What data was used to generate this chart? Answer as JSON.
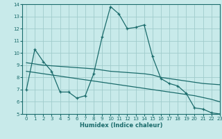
{
  "xlabel": "Humidex (Indice chaleur)",
  "bg_color": "#c8eaea",
  "line_color": "#1a6b6b",
  "grid_color": "#a0cccc",
  "xlim": [
    -0.5,
    23
  ],
  "ylim": [
    5,
    14
  ],
  "yticks": [
    5,
    6,
    7,
    8,
    9,
    10,
    11,
    12,
    13,
    14
  ],
  "xticks": [
    0,
    1,
    2,
    3,
    4,
    5,
    6,
    7,
    8,
    9,
    10,
    11,
    12,
    13,
    14,
    15,
    16,
    17,
    18,
    19,
    20,
    21,
    22,
    23
  ],
  "line1_x": [
    0,
    1,
    2,
    3,
    4,
    5,
    6,
    7,
    8,
    9,
    10,
    11,
    12,
    13,
    14,
    15,
    16,
    17,
    18,
    19,
    20,
    21,
    22,
    23
  ],
  "line1_y": [
    7.0,
    10.3,
    9.3,
    8.5,
    6.8,
    6.8,
    6.3,
    6.5,
    8.3,
    11.3,
    13.8,
    13.2,
    12.0,
    12.1,
    12.3,
    9.7,
    7.9,
    7.5,
    7.3,
    6.7,
    5.5,
    5.4,
    5.1,
    5.0
  ],
  "line2_x": [
    0,
    1,
    2,
    3,
    4,
    5,
    6,
    7,
    8,
    9,
    10,
    11,
    12,
    13,
    14,
    15,
    16,
    17,
    18,
    19,
    20,
    21,
    22,
    23
  ],
  "line2_y": [
    9.2,
    9.1,
    9.0,
    8.95,
    8.9,
    8.85,
    8.8,
    8.75,
    8.7,
    8.6,
    8.5,
    8.45,
    8.4,
    8.35,
    8.3,
    8.2,
    8.0,
    7.9,
    7.8,
    7.7,
    7.6,
    7.5,
    7.45,
    7.4
  ],
  "line3_x": [
    0,
    1,
    2,
    3,
    4,
    5,
    6,
    7,
    8,
    9,
    10,
    11,
    12,
    13,
    14,
    15,
    16,
    17,
    18,
    19,
    20,
    21,
    22,
    23
  ],
  "line3_y": [
    8.5,
    8.4,
    8.3,
    8.2,
    8.1,
    8.0,
    7.9,
    7.8,
    7.7,
    7.6,
    7.5,
    7.4,
    7.3,
    7.2,
    7.1,
    7.0,
    6.9,
    6.8,
    6.7,
    6.6,
    6.5,
    6.35,
    6.2,
    6.0
  ]
}
